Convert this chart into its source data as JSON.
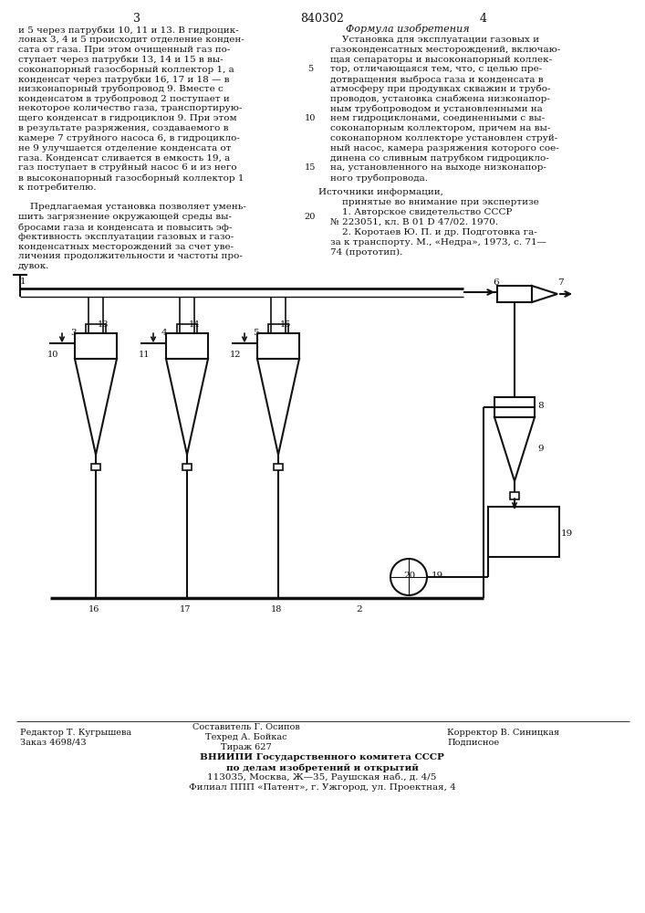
{
  "page_number_center": "840302",
  "page_left": "3",
  "page_right": "4",
  "left_col": [
    "и 5 через патрубки 10, 11 и 13. В гидроцик-",
    "лонах 3, 4 и 5 происходит отделение конден-",
    "сата от газа. При этом очищенный газ по-",
    "ступает через патрубки 13, 14 и 15 в вы-",
    "соконапорный газосборный коллектор 1, а",
    "конденсат через патрубки 16, 17 и 18 — в",
    "низконапорный трубопровод 9. Вместе с",
    "конденсатом в трубопровод 2 поступает и",
    "некоторое количество газа, транспортирую-",
    "щего конденсат в гидроциклон 9. При этом",
    "в результате разряжения, создаваемого в",
    "камере 7 струйного насоса 6, в гидроцикло-",
    "не 9 улучшается отделение конденсата от",
    "газа. Конденсат сливается в емкость 19, а",
    "газ поступает в струйный насос 6 и из него",
    "в высоконапорный газосборный коллектор 1",
    "к потребителю.",
    "",
    "    Предлагаемая установка позволяет умень-",
    "шить загрязнение окружающей среды вы-",
    "бросами газа и конденсата и повысить эф-",
    "фективность эксплуатации газовых и газо-",
    "конденсатных месторождений за счет уве-",
    "личения продолжительности и частоты про-",
    "дувок."
  ],
  "right_col_title": "Формула изобретения",
  "right_col": [
    "    Установка для эксплуатации газовых и",
    "газоконденсатных месторождений, включаю-",
    "щая сепараторы и высоконапорный коллек-",
    "тор, отличающаяся тем, что, с целью пре-",
    "дотвращения выброса газа и конденсата в",
    "атмосферу при продувках скважин и трубо-",
    "проводов, установка снабжена низконапор-",
    "ным трубопроводом и установленными на",
    "нем гидроциклонами, соединенными с вы-",
    "соконапорным коллектором, причем на вы-",
    "соконапорном коллекторе установлен струй-",
    "ный насос, камера разряжения которого сое-",
    "динена со сливным патрубком гидроцикло-",
    "на, установленного на выходе низконапор-",
    "ного трубопровода."
  ],
  "src_title": "Источники информации,",
  "src_lines": [
    "    принятые во внимание при экспертизе",
    "    1. Авторское свидетельство СССР",
    "№ 223051, кл. В 01 D 47/02. 1970.",
    "    2. Коротаев Ю. П. и др. Подготовка га-",
    "за к транспорту. М., «Недра», 1973, с. 71—",
    "74 (прототип)."
  ],
  "footer_l1": "Редактор Т. Кугрышева",
  "footer_l2": "Заказ 4698/43",
  "footer_c1": "Составитель Г. Осипов",
  "footer_c2": "Техред А. Бойкас",
  "footer_c3": "Тираж 627",
  "footer_r1": "Корректор В. Синицкая",
  "footer_r2": "Подписное",
  "footer_v1": "ВНИИПИ Государственного комитета СССР",
  "footer_v2": "по делам изобретений и открытий",
  "footer_v3": "113035, Москва, Ж—35, Раушская наб., д. 4/5",
  "footer_v4": "Филиал ППП «Патент», г. Ужгород, ул. Проектная, 4"
}
